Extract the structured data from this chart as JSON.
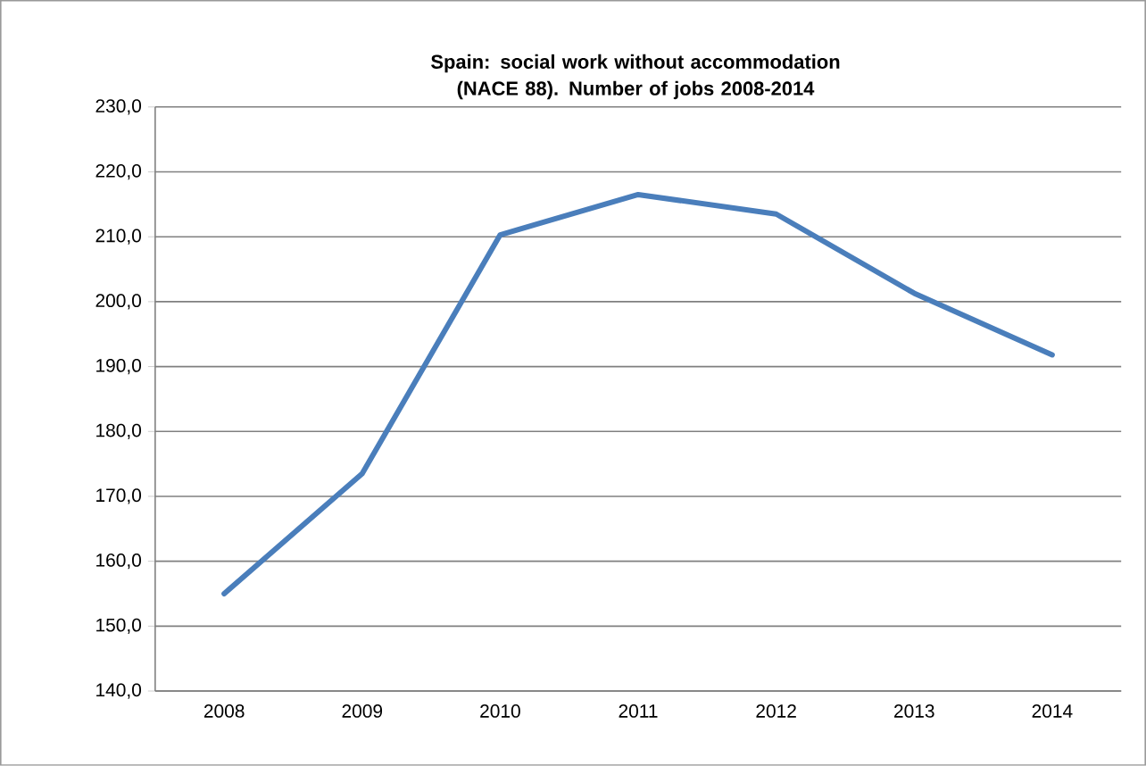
{
  "chart_data": {
    "type": "line",
    "title": "Spain: social work without accommodation (NACE 88). Number of jobs 2008-2014",
    "categories": [
      "2008",
      "2009",
      "2010",
      "2011",
      "2012",
      "2013",
      "2014"
    ],
    "series": [
      {
        "color": "#4a7ebb",
        "values": [
          155.0,
          173.5,
          210.3,
          216.5,
          213.5,
          201.3,
          191.8
        ]
      }
    ],
    "ylim": [
      140,
      230
    ],
    "yticks": [
      {
        "value": 140,
        "label": "140,0"
      },
      {
        "value": 150,
        "label": "150,0"
      },
      {
        "value": 160,
        "label": "160,0"
      },
      {
        "value": 170,
        "label": "170,0"
      },
      {
        "value": 180,
        "label": "180,0"
      },
      {
        "value": 190,
        "label": "190,0"
      },
      {
        "value": 200,
        "label": "200,0"
      },
      {
        "value": 210,
        "label": "210,0"
      },
      {
        "value": 220,
        "label": "220,0"
      },
      {
        "value": 230,
        "label": "230,0"
      }
    ],
    "grid": "y",
    "legend": false,
    "marker": "none",
    "line_style": "solid"
  }
}
